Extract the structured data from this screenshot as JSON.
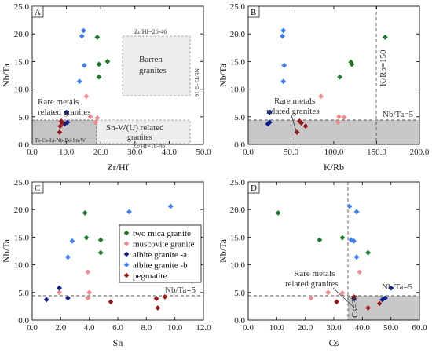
{
  "series_colors": {
    "two_mica": "#1e7a2a",
    "muscovite": "#f08c8c",
    "albite_a": "#0b1e8c",
    "albite_b": "#3f7df2",
    "pegmatite": "#991a1a"
  },
  "legend_entries": [
    {
      "key": "two_mica",
      "label": "two mica granite"
    },
    {
      "key": "muscovite",
      "label": "muscovite granite"
    },
    {
      "key": "albite_a",
      "label": "albite granite -a"
    },
    {
      "key": "albite_b",
      "label": "albite granite -b"
    },
    {
      "key": "pegmatite",
      "label": "pegmatite"
    }
  ],
  "chart_data": [
    {
      "panel": "A",
      "type": "scatter",
      "xlabel": "Zr/Hf",
      "ylabel": "Nb/Ta",
      "xlim": [
        0,
        50
      ],
      "ylim": [
        0,
        25
      ],
      "x_ticks": [
        "0.0",
        "10.0",
        "20.0",
        "30.0",
        "40.0",
        "50.0"
      ],
      "y_ticks": [
        "0.0",
        "5.0",
        "10.0",
        "15.0",
        "20.0",
        "25.0"
      ],
      "series": [
        {
          "key": "two_mica",
          "points": [
            [
              19.0,
              19.4
            ],
            [
              22.0,
              15.0
            ],
            [
              19.5,
              12.2
            ],
            [
              19.5,
              14.5
            ]
          ]
        },
        {
          "key": "muscovite",
          "points": [
            [
              15.8,
              8.7
            ],
            [
              17.0,
              5.0
            ],
            [
              18.5,
              4.0
            ],
            [
              19.0,
              4.8
            ]
          ]
        },
        {
          "key": "albite_a",
          "points": [
            [
              10.0,
              5.8
            ],
            [
              9.5,
              3.7
            ],
            [
              10.3,
              4.0
            ]
          ]
        },
        {
          "key": "albite_b",
          "points": [
            [
              15.0,
              20.6
            ],
            [
              14.5,
              19.6
            ],
            [
              15.2,
              14.3
            ],
            [
              13.8,
              11.4
            ]
          ]
        },
        {
          "key": "pegmatite",
          "points": [
            [
              8.5,
              4.2
            ],
            [
              8.2,
              3.3
            ],
            [
              8.0,
              2.2
            ],
            [
              8.8,
              3.9
            ]
          ]
        }
      ],
      "annotations": {
        "barren_text": "Barren",
        "barren_text2": "granites",
        "zrhf_26_46": "Zr/Hf=26-46",
        "nbta_5_16": "Nb/Ta=5-16",
        "rare_text": "Rare metals",
        "rare_text2": "related granites",
        "snw_text": "Sn-W(U) related",
        "snw_text2": "granites",
        "zrhf_18_46": "Zr/Hf=18-46",
        "elements_text": "Ta-Cs-Li-Nb-Be-Sn-W"
      }
    },
    {
      "panel": "B",
      "type": "scatter",
      "xlabel": "K/Rb",
      "ylabel": "Nb/Ta",
      "xlim": [
        0,
        200
      ],
      "ylim": [
        0,
        25
      ],
      "x_ticks": [
        "0.0",
        "50.0",
        "100.0",
        "150.0",
        "200.0"
      ],
      "y_ticks": [
        "0.0",
        "5.0",
        "10.0",
        "15.0",
        "20.0",
        "25.0"
      ],
      "series": [
        {
          "key": "two_mica",
          "points": [
            [
              160.0,
              19.4
            ],
            [
              120.0,
              14.9
            ],
            [
              121.0,
              14.5
            ],
            [
              107.0,
              12.2
            ]
          ]
        },
        {
          "key": "muscovite",
          "points": [
            [
              85.0,
              8.7
            ],
            [
              106.0,
              5.0
            ],
            [
              112.0,
              4.9
            ],
            [
              105.0,
              4.0
            ]
          ]
        },
        {
          "key": "albite_a",
          "points": [
            [
              25.0,
              5.8
            ],
            [
              23.0,
              3.7
            ],
            [
              25.0,
              4.0
            ]
          ]
        },
        {
          "key": "albite_b",
          "points": [
            [
              41.0,
              20.6
            ],
            [
              40.0,
              19.6
            ],
            [
              42.0,
              14.3
            ],
            [
              41.0,
              11.4
            ]
          ]
        },
        {
          "key": "pegmatite",
          "points": [
            [
              60.0,
              4.2
            ],
            [
              62.0,
              3.9
            ],
            [
              67.0,
              3.3
            ],
            [
              57.0,
              2.2
            ]
          ]
        }
      ],
      "annotations": {
        "krb_text": "K/Rb=150",
        "nbta_text": "Nb/Ta=5",
        "rare_text": "Rare metals",
        "rare_text2": "related granites"
      }
    },
    {
      "panel": "C",
      "type": "scatter",
      "xlabel": "Sn",
      "ylabel": "Nb/Ta",
      "xlim": [
        0,
        12
      ],
      "ylim": [
        0,
        25
      ],
      "x_ticks": [
        "0.0",
        "2.0",
        "4.0",
        "6.0",
        "8.0",
        "10.0",
        "12.0"
      ],
      "y_ticks": [
        "0.0",
        "5.0",
        "10.0",
        "15.0",
        "20.0",
        "25.0"
      ],
      "series": [
        {
          "key": "two_mica",
          "points": [
            [
              3.7,
              19.4
            ],
            [
              3.8,
              14.9
            ],
            [
              4.8,
              14.5
            ],
            [
              4.8,
              12.2
            ]
          ]
        },
        {
          "key": "muscovite",
          "points": [
            [
              1.9,
              5.0
            ],
            [
              3.9,
              8.7
            ],
            [
              4.0,
              5.0
            ],
            [
              3.9,
              4.0
            ]
          ]
        },
        {
          "key": "albite_a",
          "points": [
            [
              1.9,
              5.8
            ],
            [
              1.0,
              3.7
            ],
            [
              2.5,
              4.0
            ]
          ]
        },
        {
          "key": "albite_b",
          "points": [
            [
              2.8,
              14.3
            ],
            [
              2.5,
              11.4
            ],
            [
              6.8,
              19.6
            ],
            [
              9.7,
              20.6
            ]
          ]
        },
        {
          "key": "pegmatite",
          "points": [
            [
              5.5,
              3.3
            ],
            [
              8.7,
              3.9
            ],
            [
              9.3,
              4.2
            ],
            [
              8.8,
              2.2
            ]
          ]
        }
      ],
      "annotations": {
        "nbta_text": "Nb/Ta=5"
      }
    },
    {
      "panel": "D",
      "type": "scatter",
      "xlabel": "Cs",
      "ylabel": "Nb/Ta",
      "xlim": [
        0,
        60
      ],
      "ylim": [
        0,
        25
      ],
      "x_ticks": [
        "0.0",
        "10.0",
        "20.0",
        "30.0",
        "40.0",
        "50.0",
        "60.0"
      ],
      "y_ticks": [
        "0.0",
        "5.0",
        "10.0",
        "15.0",
        "20.0",
        "25.0"
      ],
      "series": [
        {
          "key": "two_mica",
          "points": [
            [
              10.5,
              19.4
            ],
            [
              25.0,
              14.5
            ],
            [
              33.0,
              14.9
            ],
            [
              42.0,
              12.2
            ]
          ]
        },
        {
          "key": "muscovite",
          "points": [
            [
              39.0,
              8.7
            ],
            [
              22.0,
              4.0
            ],
            [
              28.0,
              5.0
            ],
            [
              33.0,
              4.9
            ]
          ]
        },
        {
          "key": "albite_a",
          "points": [
            [
              50.0,
              5.8
            ],
            [
              37.0,
              3.9
            ],
            [
              47.0,
              3.7
            ],
            [
              48.0,
              4.0
            ]
          ]
        },
        {
          "key": "albite_b",
          "points": [
            [
              35.5,
              20.6
            ],
            [
              38.0,
              19.6
            ],
            [
              36.0,
              14.5
            ],
            [
              37.0,
              14.3
            ],
            [
              38.0,
              11.4
            ]
          ]
        },
        {
          "key": "pegmatite",
          "points": [
            [
              31.0,
              3.3
            ],
            [
              37.0,
              4.2
            ],
            [
              42.0,
              2.2
            ],
            [
              46.0,
              3.0
            ]
          ]
        }
      ],
      "annotations": {
        "rare_text": "Rare metals",
        "rare_text2": "related granites",
        "nbta_text": "Nb/Ta=5",
        "cs_text": "Cs=35"
      }
    }
  ]
}
